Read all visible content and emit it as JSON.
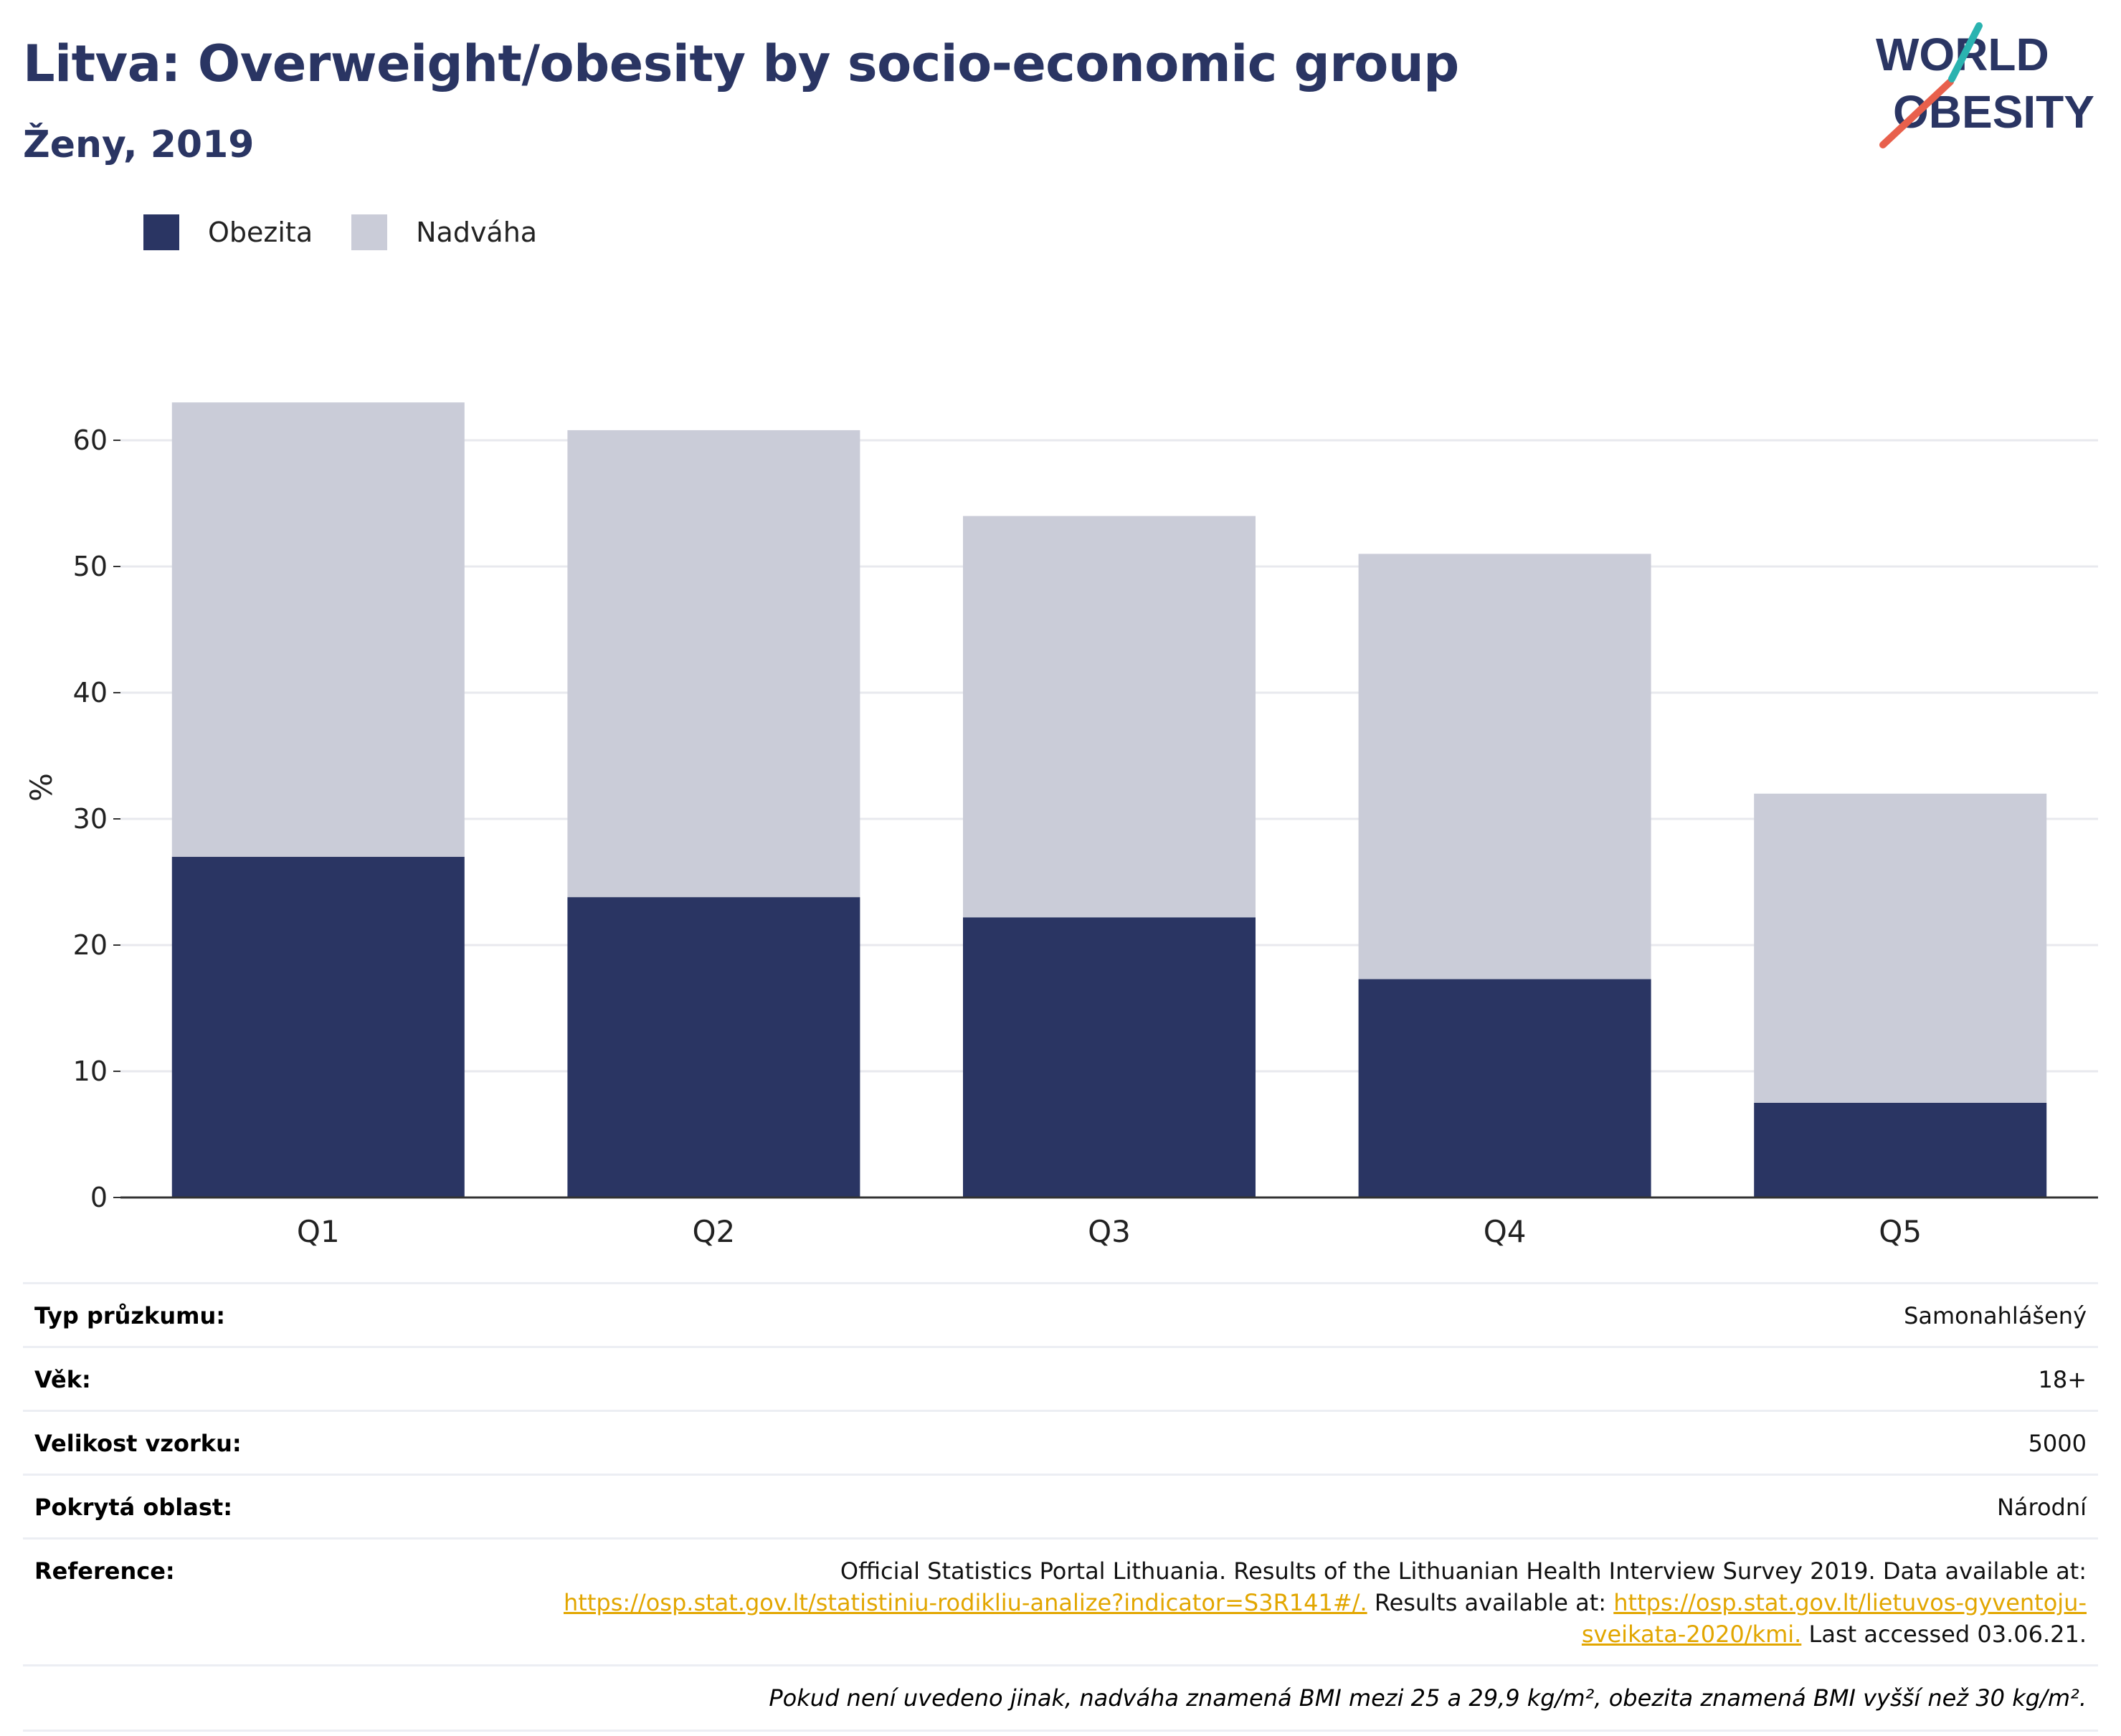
{
  "header": {
    "title": "Litva: Overweight/obesity by socio-economic group",
    "subtitle": "Ženy, 2019"
  },
  "logo": {
    "line1": "WORLD",
    "line2": "OBESITY",
    "colors": {
      "text": "#2a3563",
      "slash_red": "#e8604c",
      "slash_teal": "#2ab3b0"
    }
  },
  "colors": {
    "obezita": "#2a3563",
    "nadvaha": "#caccd8",
    "grid": "#e8e9ee",
    "axis": "#333333"
  },
  "legend": {
    "items": [
      {
        "label": "Obezita",
        "color": "#2a3563"
      },
      {
        "label": "Nadváha",
        "color": "#caccd8"
      }
    ]
  },
  "chart_data": {
    "type": "bar",
    "stacked": true,
    "categories": [
      "Q1",
      "Q2",
      "Q3",
      "Q4",
      "Q5"
    ],
    "series": [
      {
        "name": "Obezita",
        "values": [
          27.0,
          23.8,
          22.2,
          17.3,
          7.5
        ]
      },
      {
        "name": "Nadváha",
        "values": [
          36.0,
          37.0,
          31.8,
          33.7,
          24.5
        ]
      }
    ],
    "totals": [
      63.0,
      60.8,
      54.0,
      51.0,
      32.0
    ],
    "ylabel": "%",
    "xlabel": "",
    "ylim": [
      0,
      65
    ],
    "yticks": [
      0,
      10,
      20,
      30,
      40,
      50,
      60
    ],
    "grid": true,
    "legend_position": "top-left"
  },
  "info": {
    "survey_label": "Typ průzkumu:",
    "survey_value": "Samonahlášený",
    "age_label": "Věk:",
    "age_value": "18+",
    "sample_label": "Velikost vzorku:",
    "sample_value": "5000",
    "area_label": "Pokrytá oblast:",
    "area_value": "Národní",
    "reference_label": "Reference:",
    "reference_text1": "Official Statistics Portal Lithuania. Results of the Lithuanian Health Interview Survey 2019. Data available at:",
    "reference_link1": "https://osp.stat.gov.lt/statistiniu-rodikliu-analize?indicator=S3R141#/.",
    "reference_text2": " Results available at: ",
    "reference_link2a": "https://osp.stat.gov.lt/lietuvos-gyventoju-",
    "reference_link2b": "sveikata-2020/kmi.",
    "reference_text3": " Last accessed 03.06.21.",
    "note": "Pokud není uvedeno jinak, nadváha znamená BMI mezi 25 a 29,9 kg/m², obezita znamená BMI vyšší než 30 kg/m²."
  }
}
